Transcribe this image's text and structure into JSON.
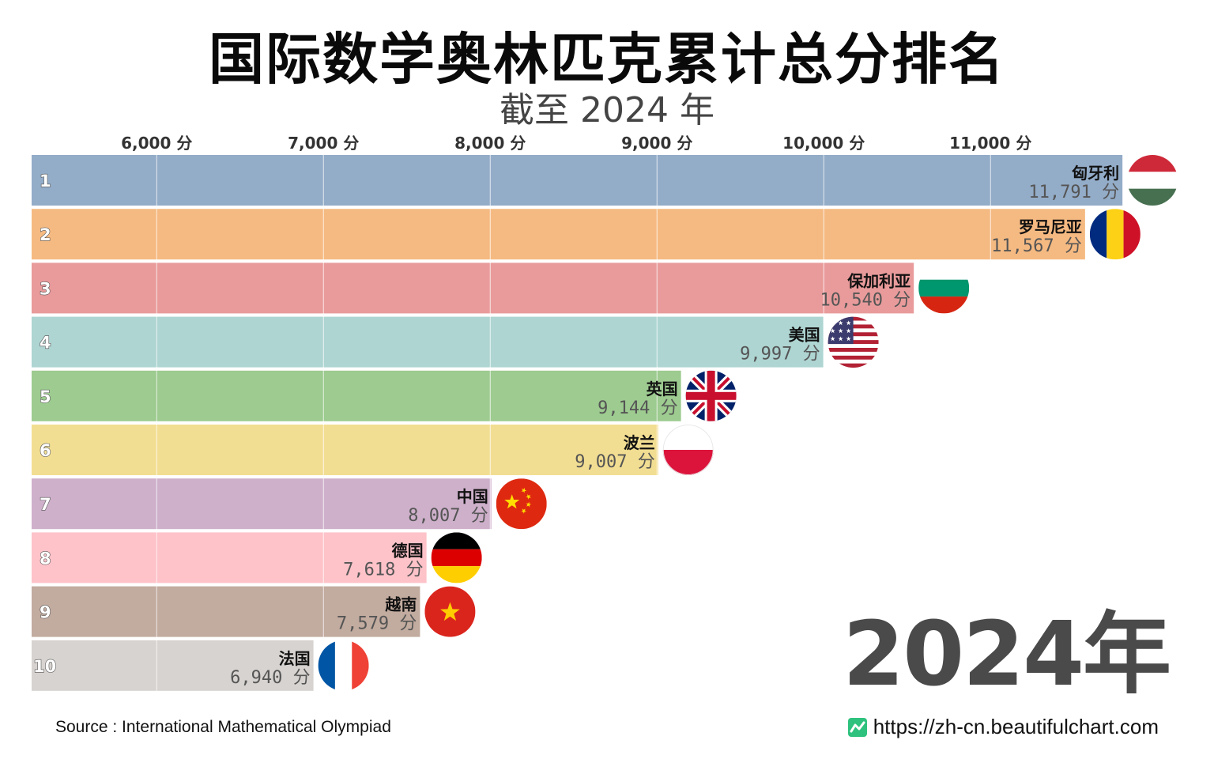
{
  "title": "国际数学奥林匹克累计总分排名",
  "subtitle": "截至 2024 年",
  "year_label": "2024年",
  "source": "Source : International Mathematical Olympiad",
  "site": "https://zh-cn.beautifulchart.com",
  "chart_data": {
    "type": "bar",
    "orientation": "horizontal",
    "categories": [
      "匈牙利",
      "罗马尼亚",
      "保加利亚",
      "美国",
      "英国",
      "波兰",
      "中国",
      "德国",
      "越南",
      "法国"
    ],
    "values": [
      11791,
      11567,
      10540,
      9997,
      9144,
      9007,
      8007,
      7618,
      7579,
      6940
    ],
    "value_labels": [
      "11,791 分",
      "11,567 分",
      "10,540 分",
      "9,997 分",
      "9,144 分",
      "9,007 分",
      "8,007 分",
      "7,618 分",
      "7,579 分",
      "6,940 分"
    ],
    "ranks": [
      "1",
      "2",
      "3",
      "4",
      "5",
      "6",
      "7",
      "8",
      "9",
      "10"
    ],
    "xlim": [
      5250,
      11791
    ],
    "ticks": [
      6000,
      7000,
      8000,
      9000,
      10000,
      11000
    ],
    "tick_labels": [
      "6,000 分",
      "7,000 分",
      "8,000 分",
      "9,000 分",
      "10,000 分",
      "11,000 分"
    ],
    "grid": true,
    "colors": [
      "#93acc8",
      "#f5ba82",
      "#e99b9b",
      "#aed5d2",
      "#9dcb90",
      "#f2de92",
      "#ceb0cb",
      "#fdc3c9",
      "#c2ab9f",
      "#d7d3d0"
    ],
    "flags": [
      "hungary-flag-icon",
      "romania-flag-icon",
      "bulgaria-flag-icon",
      "usa-flag-icon",
      "uk-flag-icon",
      "poland-flag-icon",
      "china-flag-icon",
      "germany-flag-icon",
      "vietnam-flag-icon",
      "france-flag-icon"
    ]
  }
}
